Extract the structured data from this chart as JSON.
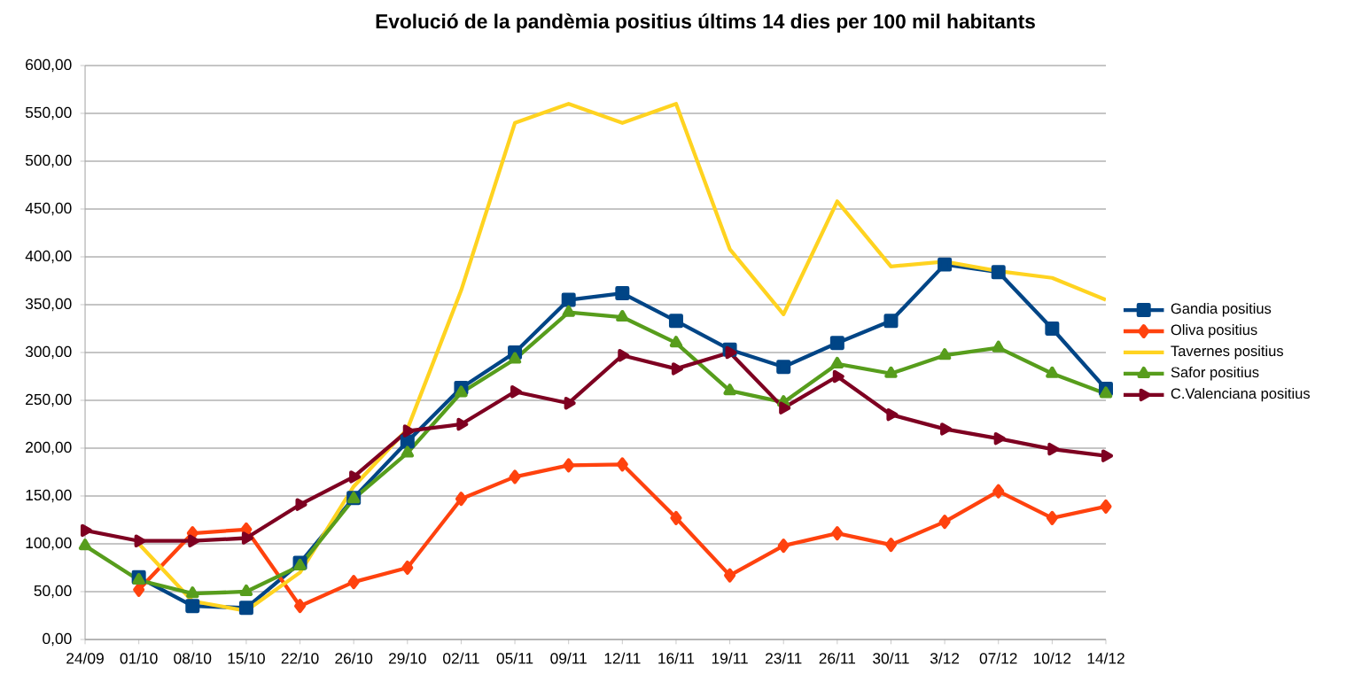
{
  "chart_data": {
    "type": "line",
    "title": "Evolució de la pandèmia positius últims 14 dies per  100 mil habitants",
    "categories": [
      "24/09",
      "01/10",
      "08/10",
      "15/10",
      "22/10",
      "26/10",
      "29/10",
      "02/11",
      "05/11",
      "09/11",
      "12/11",
      "16/11",
      "19/11",
      "23/11",
      "26/11",
      "30/11",
      "3/12",
      "07/12",
      "10/12",
      "14/12"
    ],
    "series": [
      {
        "name": "Gandia positius",
        "color": "#004586",
        "marker": "square",
        "values": [
          null,
          65,
          35,
          33,
          80,
          148,
          207,
          263,
          300,
          355,
          362,
          333,
          303,
          285,
          310,
          333,
          392,
          384,
          325,
          262
        ]
      },
      {
        "name": "Oliva  positius",
        "color": "#ff420e",
        "marker": "diamond",
        "values": [
          null,
          52,
          111,
          115,
          35,
          60,
          75,
          147,
          170,
          182,
          183,
          127,
          67,
          98,
          111,
          99,
          123,
          155,
          127,
          139
        ]
      },
      {
        "name": "Tavernes positius",
        "color": "#ffd320",
        "marker": "none",
        "values": [
          null,
          100,
          40,
          30,
          70,
          160,
          220,
          365,
          540,
          560,
          540,
          560,
          408,
          340,
          458,
          390,
          395,
          385,
          378,
          355
        ]
      },
      {
        "name": "Safor positius",
        "color": "#579d1c",
        "marker": "triangle",
        "values": [
          98,
          62,
          48,
          50,
          77,
          147,
          195,
          258,
          293,
          342,
          337,
          310,
          260,
          248,
          288,
          278,
          297,
          305,
          278,
          257
        ]
      },
      {
        "name": "C.Valenciana positius",
        "color": "#7e0021",
        "marker": "triangle right",
        "values": [
          114,
          103,
          103,
          106,
          141,
          170,
          218,
          225,
          259,
          247,
          297,
          283,
          300,
          242,
          275,
          235,
          220,
          210,
          199,
          192
        ]
      }
    ],
    "ylim": [
      0,
      600
    ],
    "yticks": [
      {
        "value": 0,
        "label": "0,00"
      },
      {
        "value": 50,
        "label": "50,00"
      },
      {
        "value": 100,
        "label": "100,00"
      },
      {
        "value": 150,
        "label": "150,00"
      },
      {
        "value": 200,
        "label": "200,00"
      },
      {
        "value": 250,
        "label": "250,00"
      },
      {
        "value": 300,
        "label": "300,00"
      },
      {
        "value": 350,
        "label": "350,00"
      },
      {
        "value": 400,
        "label": "400,00"
      },
      {
        "value": 450,
        "label": "450,00"
      },
      {
        "value": 500,
        "label": "500,00"
      },
      {
        "value": 550,
        "label": "550,00"
      },
      {
        "value": 600,
        "label": "600,00"
      }
    ],
    "grid": "y",
    "legend": "right",
    "line_style": "solid"
  }
}
